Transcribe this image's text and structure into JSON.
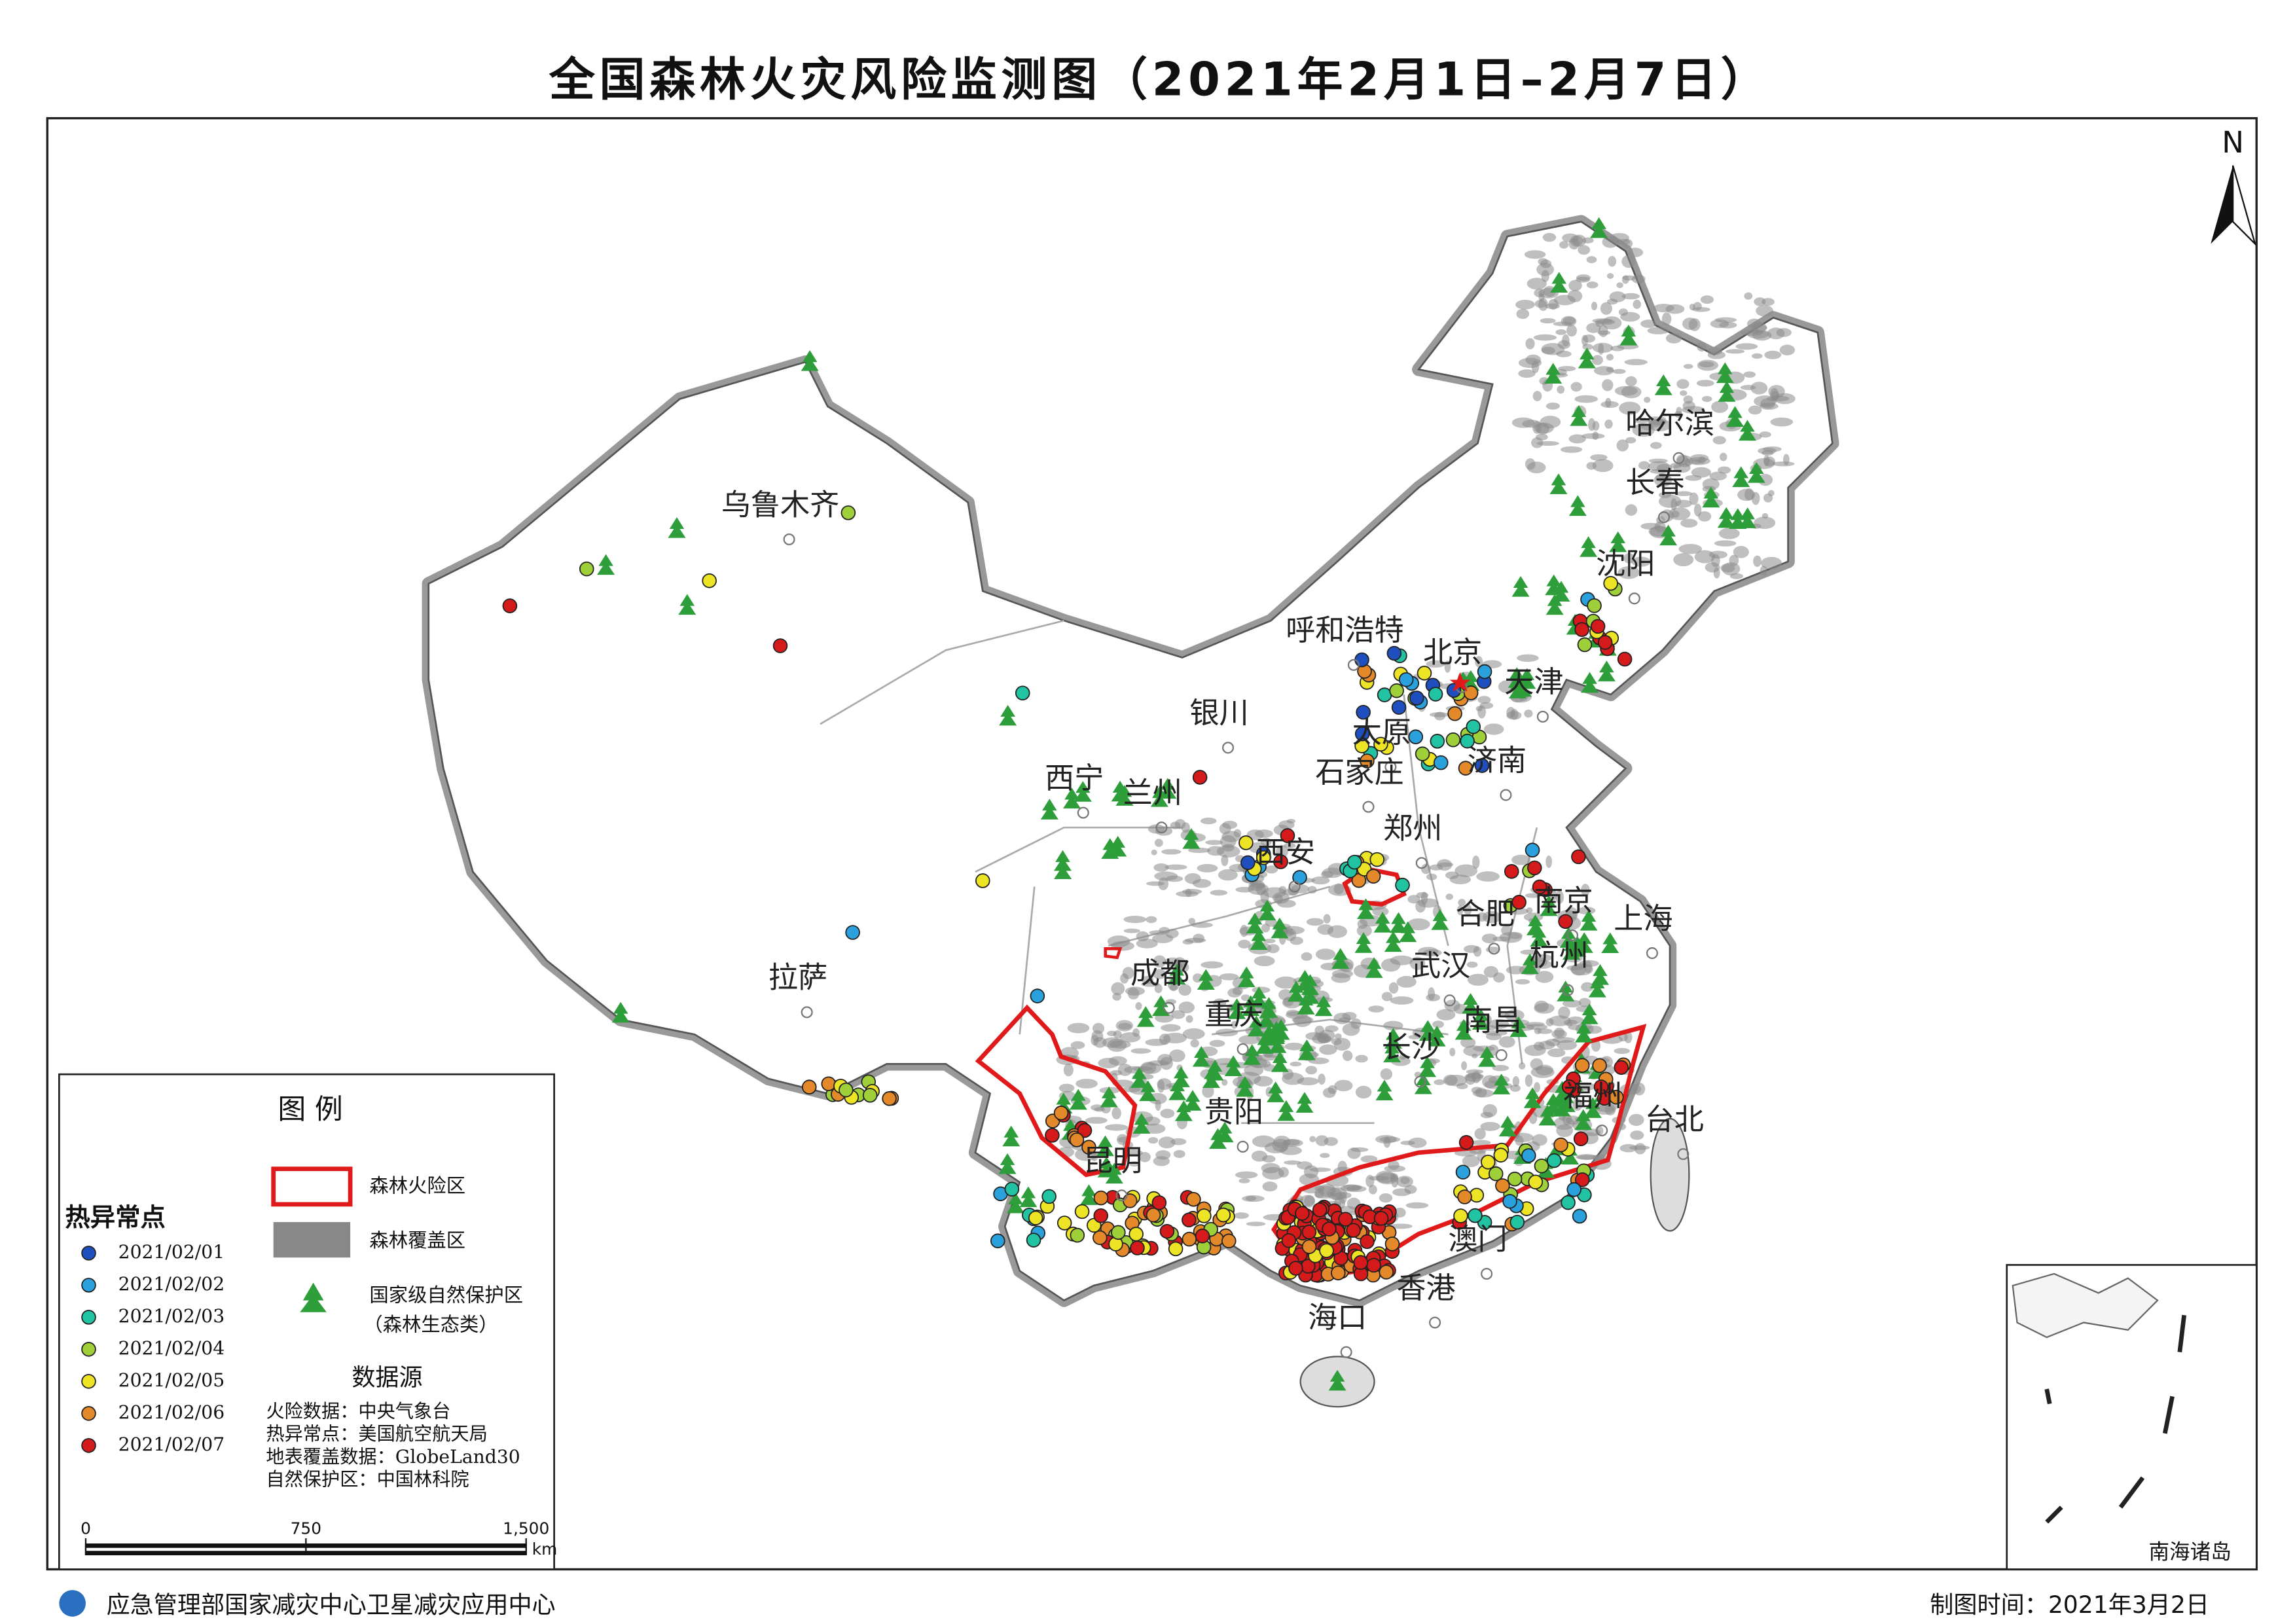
{
  "title": "全国森林火灾风险监测图（2021年2月1日–2月7日）",
  "north": "N",
  "cities": [
    "乌鲁木齐",
    "银川",
    "呼和浩特",
    "北京",
    "天津",
    "哈尔滨",
    "长春",
    "沈阳",
    "太原",
    "石家庄",
    "济南",
    "西宁",
    "兰州",
    "西安",
    "郑州",
    "合肥",
    "南京",
    "上海",
    "杭州",
    "拉萨",
    "成都",
    "重庆",
    "武汉",
    "南昌",
    "长沙",
    "贵阳",
    "福州",
    "台北",
    "昆明",
    "澳门",
    "香港",
    "海口"
  ],
  "legend": {
    "title": "图 例",
    "risk_zone": "森林火险区",
    "forest_cover": "森林覆盖区",
    "reserve": [
      "国家级自然保护区",
      "（森林生态类）"
    ],
    "hotspots": {
      "title": "热异常点",
      "dates": [
        {
          "label": "2021/02/01",
          "color": "#1f4fbf"
        },
        {
          "label": "2021/02/02",
          "color": "#2aa0dc"
        },
        {
          "label": "2021/02/03",
          "color": "#22c3a2"
        },
        {
          "label": "2021/02/04",
          "color": "#9fd03a"
        },
        {
          "label": "2021/02/05",
          "color": "#ece424"
        },
        {
          "label": "2021/02/06",
          "color": "#e3892a"
        },
        {
          "label": "2021/02/07",
          "color": "#d41a1a"
        }
      ]
    },
    "sources": {
      "title": "数据源",
      "lines": [
        "火险数据：中央气象台",
        "热异常点：美国航空航天局",
        "地表覆盖数据：GlobeLand30",
        "自然保护区：中国林科院"
      ]
    },
    "scale": {
      "ticks": [
        0,
        750,
        {
          "value": 1500,
          "label": "1,500"
        }
      ],
      "unit": "km"
    }
  },
  "inset_label": "南海诸岛",
  "footer": {
    "org": "应急管理部国家减灾中心卫星减灾应用中心",
    "date": "制图时间：2021年3月2日"
  }
}
